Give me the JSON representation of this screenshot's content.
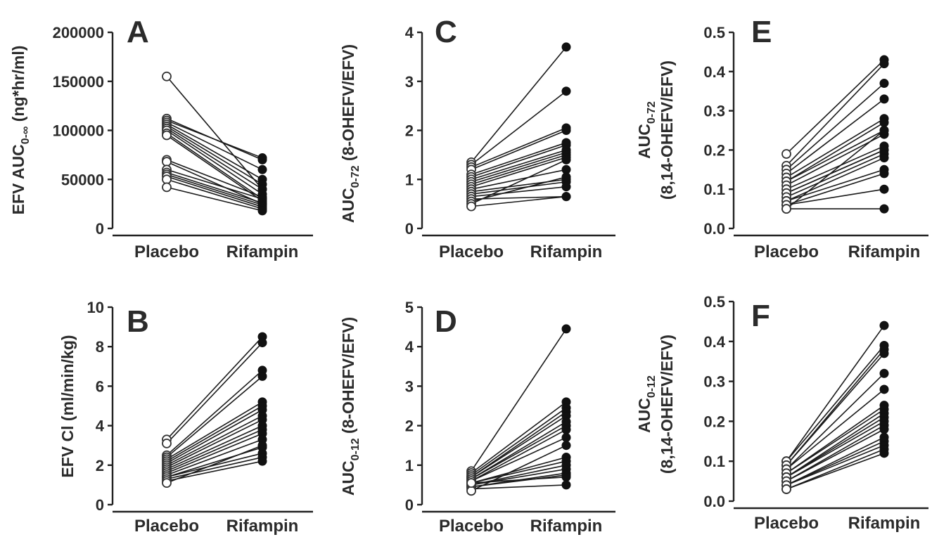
{
  "chart_data": [
    {
      "type": "line",
      "panel": "A",
      "ylabel": {
        "pre": "EFV AUC",
        "sub": "0-∞",
        "post": " (ng*hr/ml)"
      },
      "categories": [
        "Placebo",
        "Rifampin"
      ],
      "ylim": [
        0,
        200000
      ],
      "yticks": [
        "0",
        "50000",
        "100000",
        "150000",
        "200000"
      ],
      "pairs": [
        [
          155000,
          40000
        ],
        [
          112000,
          70000
        ],
        [
          110000,
          72000
        ],
        [
          108000,
          60000
        ],
        [
          106000,
          50000
        ],
        [
          104000,
          45000
        ],
        [
          102000,
          40000
        ],
        [
          100000,
          35000
        ],
        [
          97000,
          30000
        ],
        [
          95000,
          28000
        ],
        [
          70000,
          32000
        ],
        [
          68000,
          25000
        ],
        [
          60000,
          30000
        ],
        [
          57000,
          26000
        ],
        [
          55000,
          24000
        ],
        [
          53000,
          22000
        ],
        [
          50000,
          20000
        ],
        [
          42000,
          18000
        ]
      ]
    },
    {
      "type": "line",
      "panel": "B",
      "ylabel": {
        "pre": "EFV Cl (ml/min/kg)",
        "sub": "",
        "post": ""
      },
      "categories": [
        "Placebo",
        "Rifampin"
      ],
      "ylim": [
        0,
        10
      ],
      "yticks": [
        "0",
        "2",
        "4",
        "6",
        "8",
        "10"
      ],
      "pairs": [
        [
          3.3,
          8.5
        ],
        [
          3.1,
          8.2
        ],
        [
          2.5,
          6.8
        ],
        [
          2.4,
          6.5
        ],
        [
          2.3,
          5.2
        ],
        [
          2.2,
          5.0
        ],
        [
          2.1,
          4.8
        ],
        [
          2.0,
          4.5
        ],
        [
          1.9,
          4.3
        ],
        [
          1.8,
          4.0
        ],
        [
          1.7,
          3.8
        ],
        [
          1.6,
          3.6
        ],
        [
          1.5,
          3.3
        ],
        [
          1.4,
          2.9
        ],
        [
          1.4,
          2.6
        ],
        [
          1.3,
          2.4
        ],
        [
          1.2,
          2.2
        ],
        [
          1.1,
          3.0
        ]
      ]
    },
    {
      "type": "line",
      "panel": "C",
      "ylabel": {
        "pre": "AUC",
        "sub": "0-72",
        "post": " (8-OHEFV/EFV)"
      },
      "categories": [
        "Placebo",
        "Rifampin"
      ],
      "ylim": [
        0,
        4
      ],
      "yticks": [
        "0",
        "1",
        "2",
        "3",
        "4"
      ],
      "pairs": [
        [
          1.35,
          3.7
        ],
        [
          1.3,
          2.8
        ],
        [
          1.25,
          2.05
        ],
        [
          1.2,
          2.0
        ],
        [
          1.1,
          1.75
        ],
        [
          1.05,
          1.7
        ],
        [
          1.0,
          1.6
        ],
        [
          0.95,
          1.55
        ],
        [
          0.9,
          1.5
        ],
        [
          0.85,
          1.45
        ],
        [
          0.8,
          1.2
        ],
        [
          0.75,
          1.0
        ],
        [
          0.7,
          0.95
        ],
        [
          0.65,
          0.85
        ],
        [
          0.6,
          0.65
        ],
        [
          0.55,
          1.05
        ],
        [
          0.5,
          1.4
        ],
        [
          0.45,
          0.65
        ]
      ]
    },
    {
      "type": "line",
      "panel": "D",
      "ylabel": {
        "pre": "AUC",
        "sub": "0-12",
        "post": " (8-OHEFV/EFV)"
      },
      "categories": [
        "Placebo",
        "Rifampin"
      ],
      "ylim": [
        0,
        5
      ],
      "yticks": [
        "0",
        "1",
        "2",
        "3",
        "4",
        "5"
      ],
      "pairs": [
        [
          0.85,
          4.45
        ],
        [
          0.8,
          2.6
        ],
        [
          0.75,
          2.45
        ],
        [
          0.7,
          2.35
        ],
        [
          0.7,
          2.25
        ],
        [
          0.65,
          2.1
        ],
        [
          0.65,
          2.0
        ],
        [
          0.6,
          1.9
        ],
        [
          0.6,
          1.7
        ],
        [
          0.55,
          1.2
        ],
        [
          0.55,
          1.1
        ],
        [
          0.5,
          1.0
        ],
        [
          0.5,
          0.9
        ],
        [
          0.45,
          0.8
        ],
        [
          0.45,
          0.75
        ],
        [
          0.4,
          0.5
        ],
        [
          0.35,
          1.5
        ],
        [
          0.55,
          0.7
        ]
      ]
    },
    {
      "type": "line",
      "panel": "E",
      "ylabel": {
        "pre": "AUC",
        "sub": "0-72",
        "post": "",
        "line2": "(8,14-OHEFV/EFV)"
      },
      "categories": [
        "Placebo",
        "Rifampin"
      ],
      "ylim": [
        0,
        0.5
      ],
      "yticks": [
        "0.0",
        "0.1",
        "0.2",
        "0.3",
        "0.4",
        "0.5"
      ],
      "pairs": [
        [
          0.19,
          0.43
        ],
        [
          0.16,
          0.42
        ],
        [
          0.15,
          0.37
        ],
        [
          0.14,
          0.33
        ],
        [
          0.13,
          0.28
        ],
        [
          0.12,
          0.27
        ],
        [
          0.12,
          0.25
        ],
        [
          0.11,
          0.24
        ],
        [
          0.1,
          0.21
        ],
        [
          0.09,
          0.2
        ],
        [
          0.09,
          0.2
        ],
        [
          0.08,
          0.19
        ],
        [
          0.07,
          0.18
        ],
        [
          0.07,
          0.15
        ],
        [
          0.06,
          0.14
        ],
        [
          0.06,
          0.1
        ],
        [
          0.05,
          0.05
        ],
        [
          0.05,
          0.25
        ]
      ]
    },
    {
      "type": "line",
      "panel": "F",
      "ylabel": {
        "pre": "AUC",
        "sub": "0-12",
        "post": "",
        "line2": "(8,14-OHEFV/EFV)"
      },
      "categories": [
        "Placebo",
        "Rifampin"
      ],
      "ylim": [
        0,
        0.5
      ],
      "yticks": [
        "0.0",
        "0.1",
        "0.2",
        "0.3",
        "0.4",
        "0.5"
      ],
      "pairs": [
        [
          0.1,
          0.44
        ],
        [
          0.1,
          0.39
        ],
        [
          0.09,
          0.38
        ],
        [
          0.09,
          0.37
        ],
        [
          0.08,
          0.32
        ],
        [
          0.08,
          0.28
        ],
        [
          0.07,
          0.24
        ],
        [
          0.07,
          0.23
        ],
        [
          0.06,
          0.22
        ],
        [
          0.06,
          0.21
        ],
        [
          0.06,
          0.2
        ],
        [
          0.05,
          0.19
        ],
        [
          0.05,
          0.18
        ],
        [
          0.04,
          0.16
        ],
        [
          0.04,
          0.15
        ],
        [
          0.04,
          0.14
        ],
        [
          0.03,
          0.13
        ],
        [
          0.03,
          0.12
        ]
      ]
    }
  ]
}
